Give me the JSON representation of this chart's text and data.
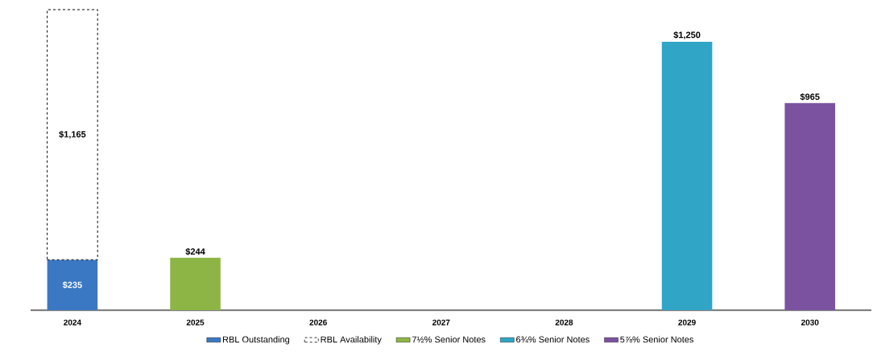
{
  "chart_data": {
    "type": "bar",
    "stacked": true,
    "legend": "bottom",
    "categories": [
      "2024",
      "2025",
      "2026",
      "2027",
      "2028",
      "2029",
      "2030"
    ],
    "series": [
      {
        "name": "RBL Outstanding",
        "color": "#3a78c3",
        "values": [
          235,
          null,
          null,
          null,
          null,
          null,
          null
        ],
        "value_labels": [
          "$235",
          null,
          null,
          null,
          null,
          null,
          null
        ]
      },
      {
        "name": "RBL Availability",
        "color": "#ffffff",
        "line_style": "dashed",
        "values": [
          1165,
          null,
          null,
          null,
          null,
          null,
          null
        ],
        "value_labels": [
          "$1,165",
          null,
          null,
          null,
          null,
          null,
          null
        ]
      },
      {
        "name": "7½% Senior Notes",
        "color": "#8db545",
        "values": [
          null,
          244,
          null,
          null,
          null,
          null,
          null
        ],
        "value_labels": [
          null,
          "$244",
          null,
          null,
          null,
          null,
          null
        ]
      },
      {
        "name": "6¾% Senior Notes",
        "color": "#30a5c6",
        "values": [
          null,
          null,
          null,
          null,
          null,
          1250,
          null
        ],
        "value_labels": [
          null,
          null,
          null,
          null,
          null,
          "$1,250",
          null
        ]
      },
      {
        "name": "5⅞% Senior Notes",
        "color": "#7a52a0",
        "values": [
          null,
          null,
          null,
          null,
          null,
          null,
          965
        ],
        "value_labels": [
          null,
          null,
          null,
          null,
          null,
          null,
          "$965"
        ]
      }
    ]
  }
}
